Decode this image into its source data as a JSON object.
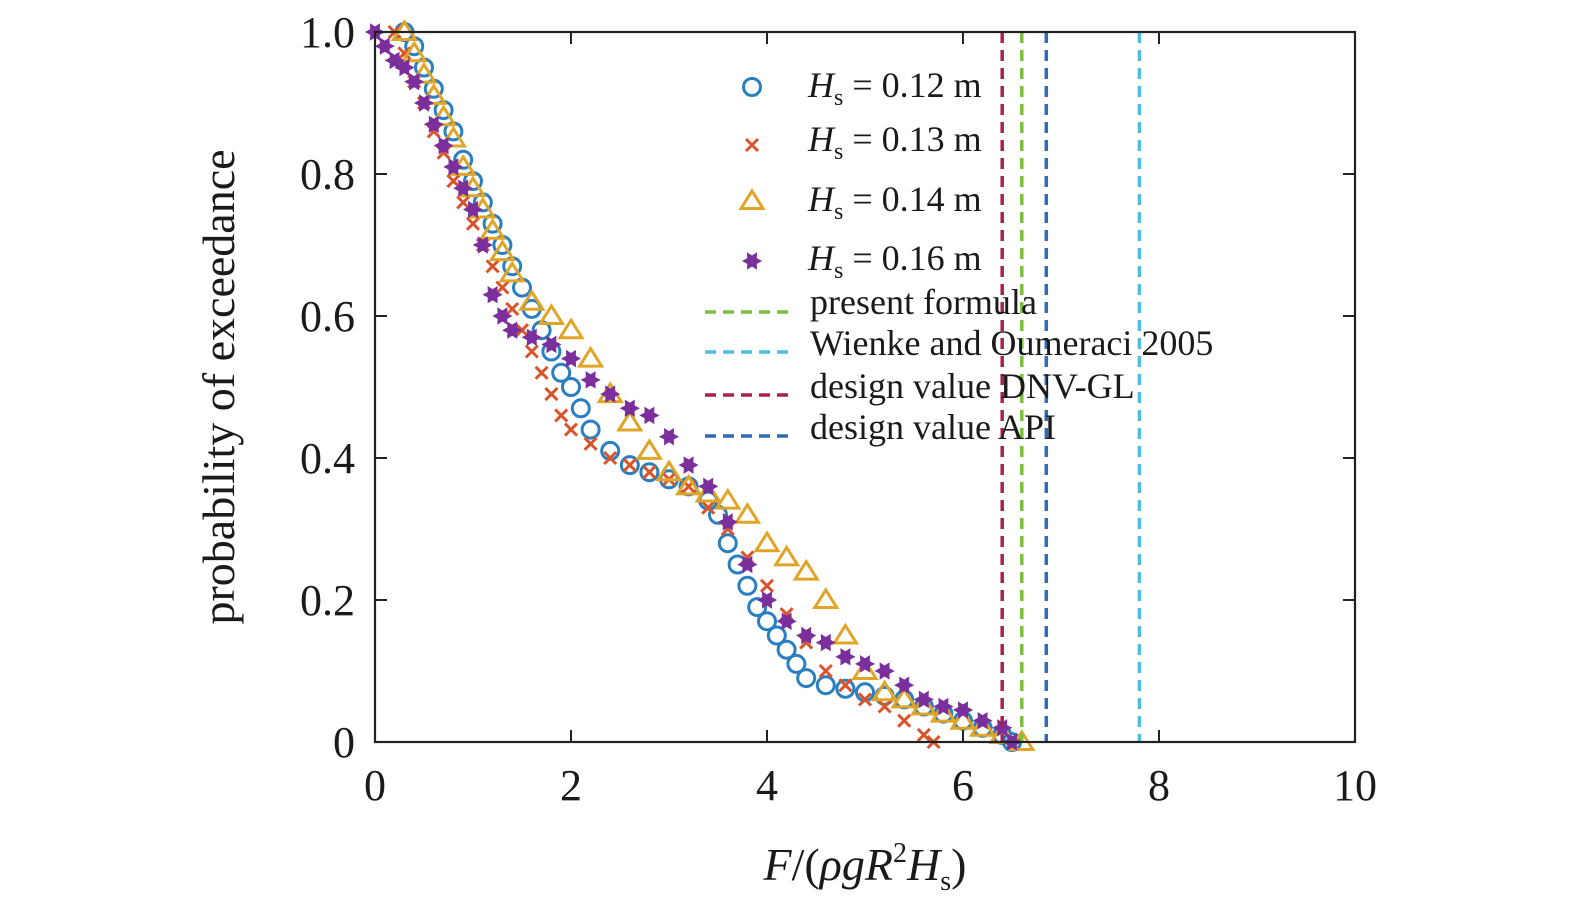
{
  "chart_data": {
    "type": "scatter",
    "xlim": [
      0,
      10
    ],
    "ylim": [
      0,
      1
    ],
    "x_ticks": [
      "0",
      "2",
      "4",
      "6",
      "8",
      "10"
    ],
    "y_ticks": [
      "0",
      "0.2",
      "0.4",
      "0.6",
      "0.8",
      "1.0"
    ],
    "xlabel": {
      "F": "F",
      "open": "/(",
      "rho": "ρ",
      "g": "g",
      "R": "R",
      "sup": "2",
      "H": "H",
      "sub": "s",
      "close": ")"
    },
    "ylabel": "probability of exceedance",
    "legend_position": "top-right",
    "grid": false,
    "series": [
      {
        "label": {
          "H": "H",
          "sub": "s",
          "rest": " = 0.12 m"
        },
        "marker": "circle",
        "color": "#2a7fc1",
        "points": [
          [
            0.3,
            1.0
          ],
          [
            0.4,
            0.98
          ],
          [
            0.5,
            0.95
          ],
          [
            0.6,
            0.92
          ],
          [
            0.7,
            0.89
          ],
          [
            0.8,
            0.86
          ],
          [
            0.9,
            0.82
          ],
          [
            1.0,
            0.79
          ],
          [
            1.1,
            0.76
          ],
          [
            1.2,
            0.73
          ],
          [
            1.3,
            0.7
          ],
          [
            1.4,
            0.67
          ],
          [
            1.5,
            0.64
          ],
          [
            1.6,
            0.61
          ],
          [
            1.7,
            0.58
          ],
          [
            1.8,
            0.55
          ],
          [
            1.9,
            0.52
          ],
          [
            2.0,
            0.5
          ],
          [
            2.1,
            0.47
          ],
          [
            2.2,
            0.44
          ],
          [
            2.4,
            0.41
          ],
          [
            2.6,
            0.39
          ],
          [
            2.8,
            0.38
          ],
          [
            3.0,
            0.37
          ],
          [
            3.2,
            0.36
          ],
          [
            3.4,
            0.34
          ],
          [
            3.5,
            0.32
          ],
          [
            3.6,
            0.28
          ],
          [
            3.7,
            0.25
          ],
          [
            3.8,
            0.22
          ],
          [
            3.9,
            0.19
          ],
          [
            4.0,
            0.17
          ],
          [
            4.1,
            0.15
          ],
          [
            4.2,
            0.13
          ],
          [
            4.3,
            0.11
          ],
          [
            4.4,
            0.09
          ],
          [
            4.6,
            0.08
          ],
          [
            4.8,
            0.075
          ],
          [
            5.0,
            0.07
          ],
          [
            5.2,
            0.065
          ],
          [
            5.4,
            0.06
          ],
          [
            5.6,
            0.05
          ],
          [
            5.8,
            0.04
          ],
          [
            6.0,
            0.03
          ],
          [
            6.2,
            0.02
          ],
          [
            6.4,
            0.01
          ],
          [
            6.5,
            0.0
          ]
        ]
      },
      {
        "label": {
          "H": "H",
          "sub": "s",
          "rest": " = 0.13 m"
        },
        "marker": "cross",
        "color": "#d9542b",
        "points": [
          [
            0.2,
            1.0
          ],
          [
            0.3,
            0.97
          ],
          [
            0.4,
            0.93
          ],
          [
            0.5,
            0.9
          ],
          [
            0.6,
            0.86
          ],
          [
            0.7,
            0.83
          ],
          [
            0.8,
            0.79
          ],
          [
            0.9,
            0.76
          ],
          [
            1.0,
            0.73
          ],
          [
            1.1,
            0.7
          ],
          [
            1.2,
            0.67
          ],
          [
            1.3,
            0.64
          ],
          [
            1.4,
            0.61
          ],
          [
            1.5,
            0.58
          ],
          [
            1.6,
            0.55
          ],
          [
            1.7,
            0.52
          ],
          [
            1.8,
            0.49
          ],
          [
            1.9,
            0.46
          ],
          [
            2.0,
            0.44
          ],
          [
            2.2,
            0.42
          ],
          [
            2.4,
            0.4
          ],
          [
            2.6,
            0.39
          ],
          [
            2.8,
            0.38
          ],
          [
            3.0,
            0.37
          ],
          [
            3.2,
            0.36
          ],
          [
            3.4,
            0.33
          ],
          [
            3.6,
            0.3
          ],
          [
            3.8,
            0.26
          ],
          [
            4.0,
            0.22
          ],
          [
            4.2,
            0.18
          ],
          [
            4.4,
            0.14
          ],
          [
            4.6,
            0.1
          ],
          [
            4.8,
            0.08
          ],
          [
            5.0,
            0.06
          ],
          [
            5.2,
            0.05
          ],
          [
            5.4,
            0.03
          ],
          [
            5.6,
            0.01
          ],
          [
            5.7,
            0.0
          ]
        ]
      },
      {
        "label": {
          "H": "H",
          "sub": "s",
          "rest": " = 0.14 m"
        },
        "marker": "triangle",
        "color": "#e0a526",
        "points": [
          [
            0.3,
            1.0
          ],
          [
            0.4,
            0.97
          ],
          [
            0.5,
            0.94
          ],
          [
            0.6,
            0.91
          ],
          [
            0.7,
            0.88
          ],
          [
            0.8,
            0.85
          ],
          [
            0.9,
            0.81
          ],
          [
            1.0,
            0.78
          ],
          [
            1.1,
            0.75
          ],
          [
            1.2,
            0.72
          ],
          [
            1.3,
            0.69
          ],
          [
            1.4,
            0.66
          ],
          [
            1.6,
            0.62
          ],
          [
            1.8,
            0.6
          ],
          [
            2.0,
            0.58
          ],
          [
            2.2,
            0.54
          ],
          [
            2.4,
            0.49
          ],
          [
            2.6,
            0.45
          ],
          [
            2.8,
            0.41
          ],
          [
            3.0,
            0.38
          ],
          [
            3.2,
            0.36
          ],
          [
            3.4,
            0.35
          ],
          [
            3.6,
            0.34
          ],
          [
            3.8,
            0.32
          ],
          [
            4.0,
            0.28
          ],
          [
            4.2,
            0.26
          ],
          [
            4.4,
            0.24
          ],
          [
            4.6,
            0.2
          ],
          [
            4.8,
            0.15
          ],
          [
            5.0,
            0.1
          ],
          [
            5.2,
            0.07
          ],
          [
            5.4,
            0.06
          ],
          [
            5.6,
            0.05
          ],
          [
            5.8,
            0.04
          ],
          [
            6.0,
            0.03
          ],
          [
            6.2,
            0.02
          ],
          [
            6.4,
            0.01
          ],
          [
            6.6,
            0.0
          ]
        ]
      },
      {
        "label": {
          "H": "H",
          "sub": "s",
          "rest": " = 0.16 m"
        },
        "marker": "star",
        "color": "#7b2f9c",
        "points": [
          [
            0.0,
            1.0
          ],
          [
            0.1,
            0.98
          ],
          [
            0.2,
            0.96
          ],
          [
            0.3,
            0.95
          ],
          [
            0.4,
            0.93
          ],
          [
            0.5,
            0.9
          ],
          [
            0.6,
            0.87
          ],
          [
            0.7,
            0.84
          ],
          [
            0.8,
            0.81
          ],
          [
            0.9,
            0.78
          ],
          [
            1.0,
            0.75
          ],
          [
            1.1,
            0.7
          ],
          [
            1.2,
            0.63
          ],
          [
            1.3,
            0.6
          ],
          [
            1.4,
            0.58
          ],
          [
            1.6,
            0.57
          ],
          [
            1.8,
            0.56
          ],
          [
            2.0,
            0.54
          ],
          [
            2.2,
            0.51
          ],
          [
            2.4,
            0.49
          ],
          [
            2.6,
            0.47
          ],
          [
            2.8,
            0.46
          ],
          [
            3.0,
            0.43
          ],
          [
            3.2,
            0.39
          ],
          [
            3.4,
            0.36
          ],
          [
            3.6,
            0.31
          ],
          [
            3.8,
            0.25
          ],
          [
            4.0,
            0.2
          ],
          [
            4.2,
            0.17
          ],
          [
            4.4,
            0.15
          ],
          [
            4.6,
            0.14
          ],
          [
            4.8,
            0.12
          ],
          [
            5.0,
            0.11
          ],
          [
            5.2,
            0.1
          ],
          [
            5.4,
            0.08
          ],
          [
            5.6,
            0.06
          ],
          [
            5.8,
            0.05
          ],
          [
            6.0,
            0.045
          ],
          [
            6.2,
            0.03
          ],
          [
            6.4,
            0.02
          ],
          [
            6.5,
            0.0
          ]
        ]
      }
    ],
    "reference_lines": [
      {
        "label": "present formula",
        "x": 6.6,
        "color": "#7cbf3e"
      },
      {
        "label": "Wienke and Oumeraci 2005",
        "x": 7.8,
        "color": "#4fbfe0"
      },
      {
        "label": "design value DNV-GL",
        "x": 6.4,
        "color": "#a8234a"
      },
      {
        "label": "design value API",
        "x": 6.85,
        "color": "#2e6db5"
      }
    ]
  }
}
